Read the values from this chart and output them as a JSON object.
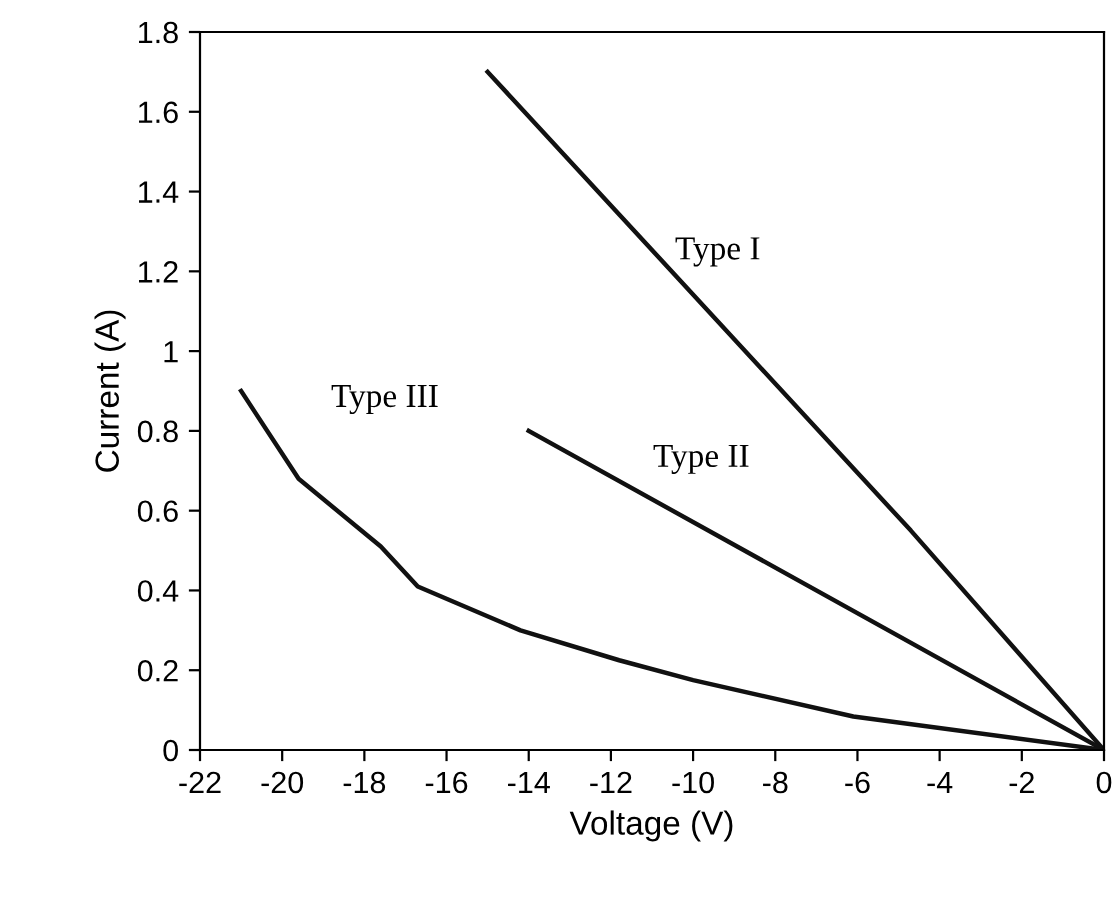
{
  "chart_data": {
    "type": "line",
    "xlabel": "Voltage (V)",
    "ylabel": "Current (A)",
    "series": [
      {
        "name": "Type I",
        "color": "#111111",
        "x": [
          -15,
          -4.7,
          0
        ],
        "values": [
          1.7,
          0.55,
          0
        ]
      },
      {
        "name": "Type II",
        "color": "#111111",
        "x": [
          -14,
          0
        ],
        "values": [
          0.8,
          0
        ]
      },
      {
        "name": "Type III",
        "color": "#111111",
        "x": [
          -21,
          -19.6,
          -17.6,
          -16.7,
          -14.2,
          -11.8,
          -10,
          -6.1,
          0
        ],
        "values": [
          0.9,
          0.68,
          0.51,
          0.41,
          0.3,
          0.225,
          0.175,
          0.084,
          0
        ]
      }
    ],
    "xlim": [
      -22,
      0
    ],
    "xticks": [
      -22,
      -20,
      -18,
      -16,
      -14,
      -12,
      -10,
      -8,
      -6,
      -4,
      -2,
      0
    ],
    "ylim": [
      0,
      1.8
    ],
    "yticks": [
      0,
      0.2,
      0.4,
      0.6,
      0.8,
      1,
      1.2,
      1.4,
      1.6,
      1.8
    ],
    "grid": false,
    "legend": false,
    "marker": "none",
    "line_style": "solid"
  }
}
